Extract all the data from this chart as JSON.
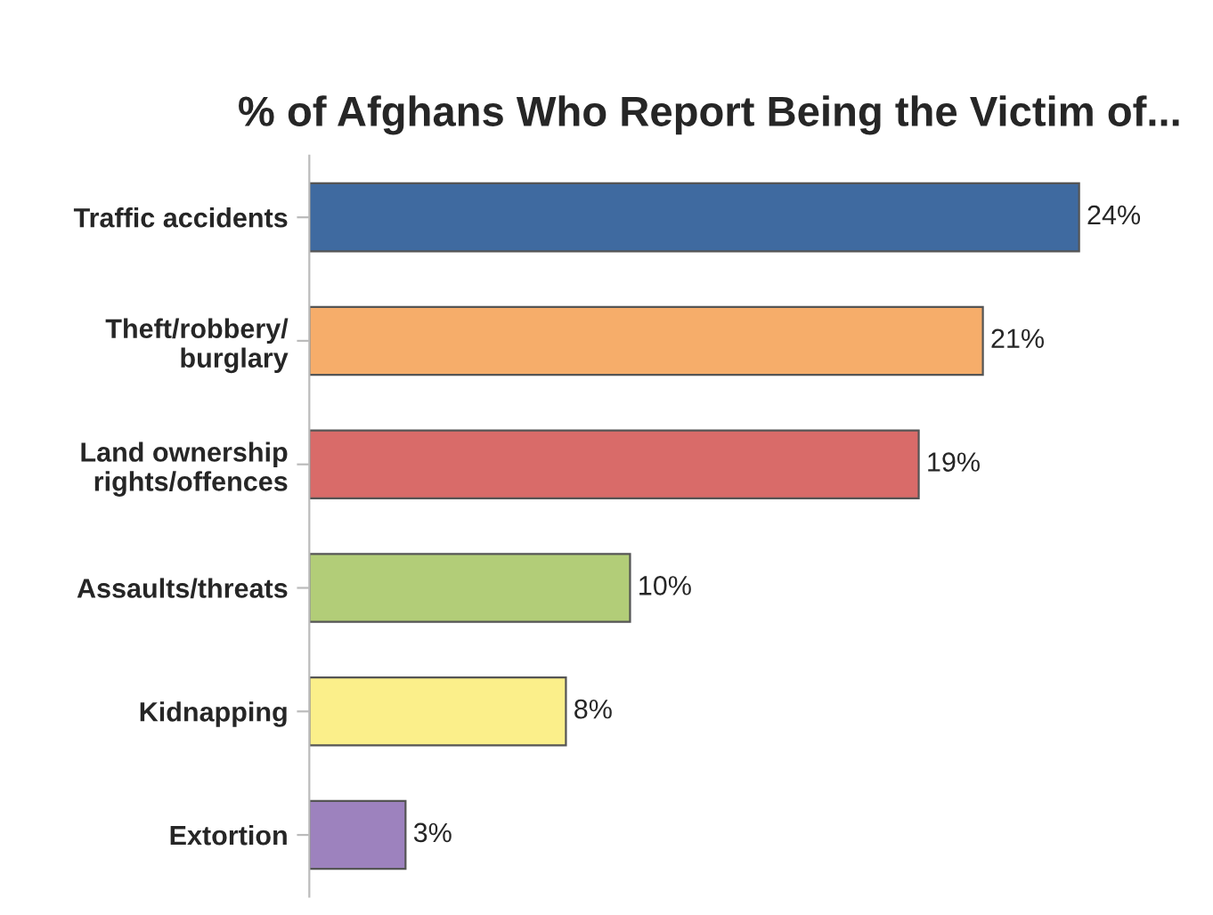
{
  "chart_data": {
    "type": "bar",
    "orientation": "horizontal",
    "title": "% of Afghans Who Report Being the Victim of...",
    "categories": [
      "Traffic accidents",
      "Theft/robbery/\nburglary",
      "Land ownership\nrights/offences",
      "Assaults/threats",
      "Kidnapping",
      "Extortion"
    ],
    "values": [
      24,
      21,
      19,
      10,
      8,
      3
    ],
    "colors": [
      "#3f6aa0",
      "#f6ad6a",
      "#d96b69",
      "#b2cd78",
      "#fbef8a",
      "#9d82be"
    ],
    "value_labels": [
      "24%",
      "21%",
      "19%",
      "10%",
      "8%",
      "3%"
    ],
    "grid": false,
    "legend": false,
    "tick_labels": "y"
  }
}
